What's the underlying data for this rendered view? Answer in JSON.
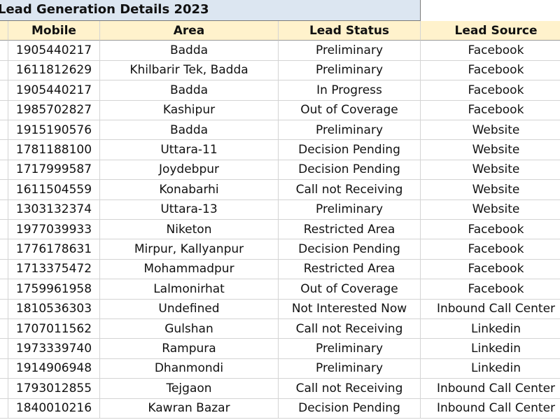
{
  "title": "Lead Generation Details 2023",
  "table": {
    "headers": [
      "Mobile",
      "Area",
      "Lead Status",
      "Lead Source"
    ],
    "rows": [
      [
        "1905440217",
        "Badda",
        "Preliminary",
        "Facebook"
      ],
      [
        "1611812629",
        "Khilbarir Tek, Badda",
        "Preliminary",
        "Facebook"
      ],
      [
        "1905440217",
        "Badda",
        "In Progress",
        "Facebook"
      ],
      [
        "1985702827",
        "Kashipur",
        "Out of Coverage",
        "Facebook"
      ],
      [
        "1915190576",
        "Badda",
        "Preliminary",
        "Website"
      ],
      [
        "1781188100",
        "Uttara-11",
        "Decision Pending",
        "Website"
      ],
      [
        "1717999587",
        "Joydebpur",
        "Decision Pending",
        "Website"
      ],
      [
        "1611504559",
        "Konabarhi",
        "Call not Receiving",
        "Website"
      ],
      [
        "1303132374",
        "Uttara-13",
        "Preliminary",
        "Website"
      ],
      [
        "1977039933",
        "Niketon",
        "Restricted Area",
        "Facebook"
      ],
      [
        "1776178631",
        "Mirpur, Kallyanpur",
        "Decision Pending",
        "Facebook"
      ],
      [
        "1713375472",
        "Mohammadpur",
        "Restricted Area",
        "Facebook"
      ],
      [
        "1759961958",
        "Lalmonirhat",
        "Out of Coverage",
        "Facebook"
      ],
      [
        "1810536303",
        "Undefined",
        "Not Interested Now",
        "Inbound Call Center"
      ],
      [
        "1707011562",
        "Gulshan",
        "Call not Receiving",
        "Linkedin"
      ],
      [
        "1973339740",
        "Rampura",
        "Preliminary",
        "Linkedin"
      ],
      [
        "1914906948",
        "Dhanmondi",
        "Preliminary",
        "Linkedin"
      ],
      [
        "1793012855",
        "Tejgaon",
        "Call not Receiving",
        "Inbound Call Center"
      ],
      [
        "1840010216",
        "Kawran Bazar",
        "Decision Pending",
        "Inbound Call Center"
      ]
    ]
  }
}
